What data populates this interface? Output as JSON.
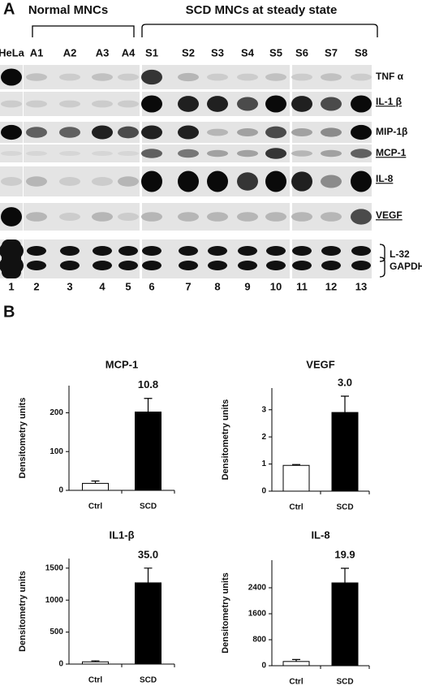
{
  "panel_a": {
    "label": "A",
    "groups": [
      "Normal MNCs",
      "SCD MNCs at steady state"
    ],
    "lanes": [
      "HeLa",
      "A1",
      "A2",
      "A3",
      "A4",
      "S1",
      "S2",
      "S3",
      "S4",
      "S5",
      "S6",
      "S7",
      "S8"
    ],
    "lane_numbers": [
      1,
      2,
      3,
      4,
      5,
      6,
      7,
      8,
      9,
      10,
      11,
      12,
      13
    ],
    "genes": [
      "TNF α",
      "IL-1 β",
      "MIP-1β",
      "MCP-1",
      "IL-8",
      "VEGF",
      "L-32",
      "GAPDH"
    ]
  },
  "panel_b": {
    "label": "B"
  },
  "chart_data": [
    {
      "type": "bar",
      "title": "MCP-1",
      "y_label": "Densitometry units",
      "categories": [
        "Ctrl",
        "SCD"
      ],
      "values": [
        18,
        202
      ],
      "errors": [
        6,
        35
      ],
      "colors": [
        "#ffffff",
        "#000000"
      ],
      "annotation": "10.8",
      "ylim": [
        0,
        270
      ],
      "yticks": [
        0,
        100,
        200
      ]
    },
    {
      "type": "bar",
      "title": "VEGF",
      "y_label": "Densitometry units",
      "categories": [
        "Ctrl",
        "SCD"
      ],
      "values": [
        0.95,
        2.9
      ],
      "errors": [
        0.03,
        0.6
      ],
      "colors": [
        "#ffffff",
        "#000000"
      ],
      "annotation": "3.0",
      "ylim": [
        0,
        3.8
      ],
      "yticks": [
        0,
        1,
        2,
        3
      ]
    },
    {
      "type": "bar",
      "title": "IL1-β",
      "y_label": "Densitometry units",
      "categories": [
        "Ctrl",
        "SCD"
      ],
      "values": [
        35,
        1270
      ],
      "errors": [
        15,
        230
      ],
      "colors": [
        "#ffffff",
        "#000000"
      ],
      "annotation": "35.0",
      "ylim": [
        0,
        1650
      ],
      "yticks": [
        0,
        500,
        1000,
        1500
      ]
    },
    {
      "type": "bar",
      "title": "IL-8",
      "y_label": "Densitometry units",
      "categories": [
        "Ctrl",
        "SCD"
      ],
      "values": [
        130,
        2550
      ],
      "errors": [
        60,
        450
      ],
      "colors": [
        "#ffffff",
        "#000000"
      ],
      "annotation": "19.9",
      "ylim": [
        0,
        3250
      ],
      "yticks": [
        0,
        800,
        1600,
        2400
      ]
    }
  ]
}
